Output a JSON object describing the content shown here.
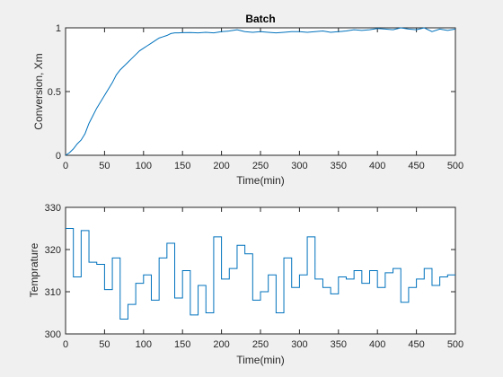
{
  "colors": {
    "figure_bg": "#f0f0f0",
    "axes_bg": "#ffffff",
    "axis": "#262626",
    "series": "#0072bd"
  },
  "chart_data": [
    {
      "type": "line",
      "title": "Batch",
      "xlabel": "Time(min)",
      "ylabel": "Conversion, Xm",
      "xlim": [
        0,
        500
      ],
      "ylim": [
        0,
        1
      ],
      "xticks": [
        0,
        50,
        100,
        150,
        200,
        250,
        300,
        350,
        400,
        450,
        500
      ],
      "xtick_labels": [
        "0",
        "50",
        "100",
        "150",
        "200",
        "250",
        "300",
        "350",
        "400",
        "450",
        "500"
      ],
      "yticks": [
        0,
        0.5,
        1
      ],
      "ytick_labels": [
        "0",
        "0.5",
        "1"
      ],
      "grid": false,
      "series": [
        {
          "x": [
            0,
            5,
            10,
            15,
            20,
            25,
            30,
            35,
            40,
            45,
            50,
            55,
            60,
            65,
            70,
            75,
            80,
            85,
            90,
            95,
            100,
            105,
            110,
            115,
            120,
            125,
            130,
            135,
            140,
            145,
            150,
            160,
            170,
            180,
            190,
            200,
            210,
            220,
            230,
            240,
            250,
            260,
            270,
            280,
            290,
            300,
            310,
            320,
            330,
            340,
            350,
            360,
            370,
            380,
            390,
            400,
            410,
            420,
            430,
            440,
            450,
            460,
            470,
            480,
            490,
            500
          ],
          "y": [
            0,
            0.02,
            0.05,
            0.09,
            0.12,
            0.17,
            0.25,
            0.31,
            0.37,
            0.42,
            0.47,
            0.52,
            0.57,
            0.63,
            0.67,
            0.7,
            0.73,
            0.76,
            0.79,
            0.82,
            0.84,
            0.86,
            0.88,
            0.9,
            0.92,
            0.93,
            0.94,
            0.955,
            0.96,
            0.96,
            0.962,
            0.963,
            0.96,
            0.965,
            0.96,
            0.97,
            0.975,
            0.985,
            0.97,
            0.965,
            0.97,
            0.965,
            0.96,
            0.965,
            0.97,
            0.97,
            0.965,
            0.97,
            0.975,
            0.965,
            0.97,
            0.975,
            0.985,
            0.98,
            0.985,
            0.995,
            0.99,
            0.985,
            1.0,
            0.99,
            0.985,
            1.0,
            0.97,
            0.99,
            0.98,
            0.99
          ]
        }
      ]
    },
    {
      "type": "line",
      "title": "",
      "xlabel": "Time(min)",
      "ylabel": "Temprature",
      "xlim": [
        0,
        500
      ],
      "ylim": [
        300,
        330
      ],
      "xticks": [
        0,
        50,
        100,
        150,
        200,
        250,
        300,
        350,
        400,
        450,
        500
      ],
      "xtick_labels": [
        "0",
        "50",
        "100",
        "150",
        "200",
        "250",
        "300",
        "350",
        "400",
        "450",
        "500"
      ],
      "yticks": [
        300,
        310,
        320,
        330
      ],
      "ytick_labels": [
        "300",
        "310",
        "320",
        "330"
      ],
      "grid": false,
      "step": true,
      "series": [
        {
          "x": [
            0,
            10,
            20,
            30,
            40,
            50,
            60,
            70,
            80,
            90,
            100,
            110,
            120,
            130,
            140,
            150,
            160,
            170,
            180,
            190,
            200,
            210,
            220,
            230,
            240,
            250,
            260,
            270,
            280,
            290,
            300,
            310,
            320,
            330,
            340,
            350,
            360,
            370,
            380,
            390,
            400,
            410,
            420,
            430,
            440,
            450,
            460,
            470,
            480,
            490,
            500
          ],
          "y": [
            325,
            313.5,
            324.5,
            317,
            316.5,
            310.5,
            318,
            303.5,
            307,
            312,
            314,
            308,
            318,
            321.5,
            308.5,
            315,
            304.5,
            311.5,
            305,
            323,
            313,
            315.5,
            321,
            319,
            308,
            310,
            314,
            305,
            318,
            311,
            314,
            323,
            313,
            311,
            309.5,
            313.5,
            313,
            315,
            312,
            315,
            311,
            314.5,
            315.5,
            307.5,
            311,
            313,
            315.5,
            311.5,
            313.5,
            314,
            314
          ]
        }
      ]
    }
  ]
}
